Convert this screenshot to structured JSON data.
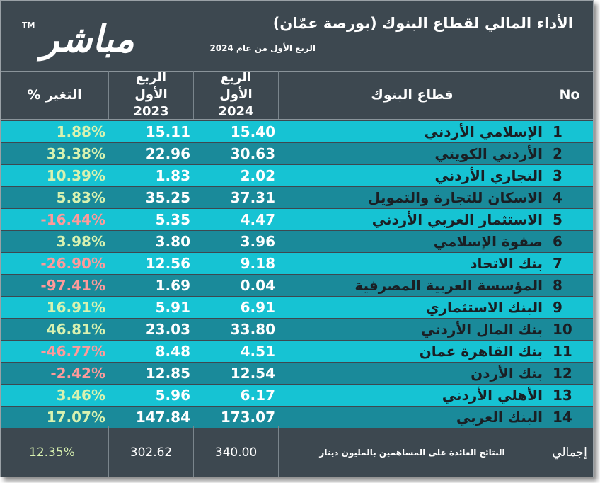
{
  "header": {
    "logo_text": "مباشر",
    "logo_tm": "TM",
    "title": "الأداء المالي لقطاع البنوك (بورصة عمّان)",
    "subtitle": "الربع الأول من عام 2024"
  },
  "columns": {
    "no": "No",
    "sector": "قطاع البنوك",
    "q1_2024": "الربع الأول 2024",
    "q1_2023": "الربع الأول 2023",
    "change": "التغير %"
  },
  "rows": [
    {
      "no": "1",
      "name": "الإسلامي الأردني",
      "v2024": "15.40",
      "v2023": "15.11",
      "change": "1.88%",
      "sign": "pos"
    },
    {
      "no": "2",
      "name": "الأردني الكويتي",
      "v2024": "30.63",
      "v2023": "22.96",
      "change": "33.38%",
      "sign": "pos"
    },
    {
      "no": "3",
      "name": "التجاري الأردني",
      "v2024": "2.02",
      "v2023": "1.83",
      "change": "10.39%",
      "sign": "pos"
    },
    {
      "no": "4",
      "name": "الاسكان للتجارة والتمويل",
      "v2024": "37.31",
      "v2023": "35.25",
      "change": "5.83%",
      "sign": "pos"
    },
    {
      "no": "5",
      "name": "الاستثمار العربي الأردني",
      "v2024": "4.47",
      "v2023": "5.35",
      "change": "-16.44%",
      "sign": "neg"
    },
    {
      "no": "6",
      "name": "صفوة الإسلامي",
      "v2024": "3.96",
      "v2023": "3.80",
      "change": "3.98%",
      "sign": "pos"
    },
    {
      "no": "7",
      "name": "بنك الاتحاد",
      "v2024": "9.18",
      "v2023": "12.56",
      "change": "-26.90%",
      "sign": "neg"
    },
    {
      "no": "8",
      "name": "المؤسسة العربية المصرفية",
      "v2024": "0.04",
      "v2023": "1.69",
      "change": "-97.41%",
      "sign": "neg"
    },
    {
      "no": "9",
      "name": "البنك الاستثماري",
      "v2024": "6.91",
      "v2023": "5.91",
      "change": "16.91%",
      "sign": "pos"
    },
    {
      "no": "10",
      "name": "بنك المال الأردني",
      "v2024": "33.80",
      "v2023": "23.03",
      "change": "46.81%",
      "sign": "pos"
    },
    {
      "no": "11",
      "name": "بنك القاهرة عمان",
      "v2024": "4.51",
      "v2023": "8.48",
      "change": "-46.77%",
      "sign": "neg"
    },
    {
      "no": "12",
      "name": "بنك الأردن",
      "v2024": "12.54",
      "v2023": "12.85",
      "change": "-2.42%",
      "sign": "neg"
    },
    {
      "no": "13",
      "name": "الأهلي الأردني",
      "v2024": "6.17",
      "v2023": "5.96",
      "change": "3.46%",
      "sign": "pos"
    },
    {
      "no": "14",
      "name": "البنك العربي",
      "v2024": "173.07",
      "v2023": "147.84",
      "change": "17.07%",
      "sign": "pos"
    }
  ],
  "footer": {
    "label": "إجمالي",
    "note": "النتائج العائدة على المساهمين بالمليون دينار",
    "v2024": "340.00",
    "v2023": "302.62",
    "change": "12.35%"
  },
  "colors": {
    "background": "#3d4850",
    "row_light": "#16c3d3",
    "row_dark": "#1a8a9a",
    "positive": "#d9f2b0",
    "negative": "#ff9a9a"
  }
}
